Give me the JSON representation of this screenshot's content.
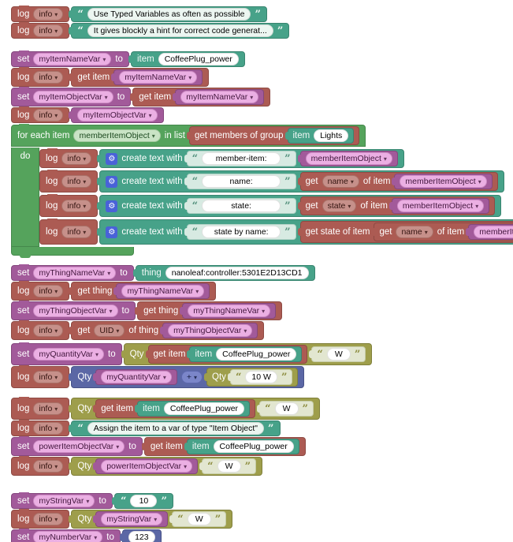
{
  "icons": {
    "dropdown_arrow": "▾",
    "gear": "⚙",
    "quote_open": "“",
    "quote_close": "”"
  },
  "colors": {
    "log_red": "#AC5B53",
    "variable_magenta": "#A25A9A",
    "text_teal": "#47A289",
    "loop_green": "#55A35C",
    "quantity_olive": "#9E9E4B",
    "math_blue": "#5B67A5",
    "gear_blue": "#4962D8"
  },
  "labels": {
    "log": "log",
    "set": "set",
    "to": "to",
    "item": "item",
    "thing": "thing",
    "get": "get",
    "get_item": "get item",
    "get_thing": "get thing",
    "of_item": "of item",
    "of_thing": "of thing",
    "for_each_item": "for each item",
    "in_list": "in list",
    "do": "do",
    "get_members_of_group": "get members of group",
    "create_text_with": "create text with",
    "get_state_of_item": "get state of item",
    "qty": "Qty"
  },
  "dropdowns": {
    "info": "info",
    "uid": "UID",
    "name": "name",
    "state": "state",
    "plus": "+"
  },
  "vars": {
    "my_item_name": "myItemNameVar",
    "my_item_object": "myItemObjectVar",
    "member_item_object": "memberItemObject",
    "my_thing_name": "myThingNameVar",
    "my_thing_object": "myThingObjectVar",
    "my_quantity": "myQuantityVar",
    "power_item_object": "powerItemObjectVar",
    "my_string": "myStringVar",
    "my_number": "myNumberVar"
  },
  "strings": {
    "hint1": "Use Typed Variables as often as possible",
    "hint2": "It gives blockly a hint for correct code generat...",
    "member_item": "member-item:",
    "name": "name:",
    "state": "state:",
    "state_by_name": "state by name:",
    "assign_hint": "Assign the item to a var of type \"Item Object\"",
    "w": "W",
    "ten_w": "10 W",
    "ten": "10"
  },
  "values": {
    "coffee_plug": "CoffeePlug_power",
    "lights": "Lights",
    "nanoleaf_thing": "nanoleaf:controller:5301E2D13CD1",
    "number_123": "123"
  }
}
